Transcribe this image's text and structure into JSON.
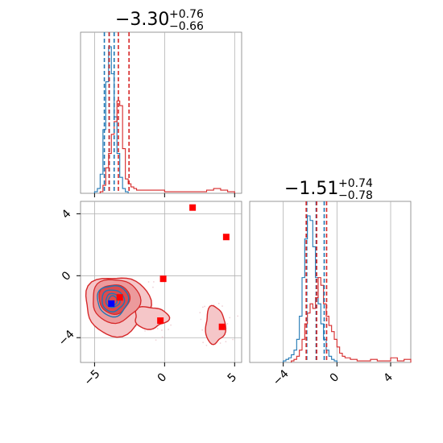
{
  "chart_data": [
    {
      "panel": "top-left",
      "type": "histogram",
      "title": {
        "main": "−3.30",
        "sup": "+0.76",
        "sub": "−0.66"
      },
      "xlim": [
        -6,
        5.5
      ],
      "grid": true,
      "xticks": [
        -5,
        0,
        5
      ],
      "tick_labels_visible": false,
      "series": [
        {
          "color": "#1f77b4",
          "bin_edges": [
            -5.0,
            -4.8,
            -4.6,
            -4.4,
            -4.2,
            -4.0,
            -3.8,
            -3.6,
            -3.4,
            -3.2,
            -3.0,
            -2.8,
            -2.6
          ],
          "counts": [
            1,
            3,
            12,
            40,
            70,
            92,
            75,
            48,
            25,
            10,
            3,
            1
          ]
        },
        {
          "color": "#d62728",
          "bin_edges": [
            -4.6,
            -4.4,
            -4.2,
            -4.0,
            -3.8,
            -3.6,
            -3.4,
            -3.2,
            -3.0,
            -2.8,
            -2.6,
            -2.4,
            -2.2,
            -2.0,
            -1.6,
            -1.0,
            0.0,
            1.0,
            2.0,
            3.0,
            3.5,
            4.0,
            4.5,
            5.0
          ],
          "counts": [
            1,
            5,
            16,
            25,
            37,
            45,
            58,
            55,
            28,
            9,
            6,
            4,
            3,
            2,
            2,
            2,
            1,
            1,
            1,
            2,
            3,
            2,
            1
          ]
        }
      ],
      "vlines": [
        {
          "x": -4.3,
          "color": "#1f77b4"
        },
        {
          "x": -3.95,
          "color": "#1f77b4"
        },
        {
          "x": -3.6,
          "color": "#1f77b4"
        },
        {
          "x": -3.96,
          "color": "#d62728"
        },
        {
          "x": -3.3,
          "color": "#d62728"
        },
        {
          "x": -2.54,
          "color": "#d62728"
        }
      ]
    },
    {
      "panel": "bottom-left",
      "type": "contour-scatter",
      "xlim": [
        -6,
        5.5
      ],
      "ylim": [
        -5.6,
        4.8
      ],
      "grid": true,
      "xticks": [
        -5,
        0,
        5
      ],
      "yticks": [
        -4,
        0,
        4
      ],
      "red_points": [
        [
          2.0,
          4.4
        ],
        [
          4.4,
          2.5
        ],
        [
          -0.1,
          -0.2
        ],
        [
          -3.2,
          -1.4
        ],
        [
          -0.3,
          -2.9
        ],
        [
          4.1,
          -3.3
        ]
      ],
      "blue_points": [
        [
          -3.8,
          -1.8
        ]
      ],
      "blue_contour_center": [
        -3.7,
        -1.6
      ]
    },
    {
      "panel": "bottom-right",
      "type": "histogram",
      "title": {
        "main": "−1.51",
        "sup": "+0.74",
        "sub": "−0.78"
      },
      "xlim": [
        -6.5,
        5.5
      ],
      "grid": true,
      "xticks": [
        -4,
        0,
        4
      ],
      "series": [
        {
          "color": "#1f77b4",
          "bin_edges": [
            -4.0,
            -3.8,
            -3.6,
            -3.4,
            -3.2,
            -3.0,
            -2.8,
            -2.6,
            -2.4,
            -2.2,
            -2.0,
            -1.8,
            -1.6,
            -1.4,
            -1.2,
            -1.0,
            -0.8,
            -0.6,
            -0.4,
            -0.2,
            0.0
          ],
          "counts": [
            1,
            2,
            3,
            5,
            8,
            15,
            30,
            55,
            80,
            95,
            92,
            75,
            55,
            38,
            25,
            15,
            8,
            4,
            2,
            1
          ]
        },
        {
          "color": "#d62728",
          "bin_edges": [
            -3.4,
            -3.2,
            -3.0,
            -2.8,
            -2.6,
            -2.4,
            -2.2,
            -2.0,
            -1.8,
            -1.6,
            -1.4,
            -1.2,
            -1.0,
            -0.8,
            -0.6,
            -0.4,
            -0.2,
            0.0,
            0.2,
            0.4,
            0.6,
            0.8,
            1.0,
            1.5,
            2.0,
            2.5,
            3.0,
            3.5,
            4.0,
            4.5,
            5.0,
            5.5
          ],
          "counts": [
            1,
            2,
            4,
            8,
            15,
            25,
            32,
            38,
            35,
            42,
            55,
            50,
            38,
            30,
            24,
            20,
            15,
            10,
            6,
            4,
            3,
            3,
            2,
            1,
            1,
            2,
            1,
            1,
            3,
            1,
            2
          ]
        }
      ],
      "vlines": [
        {
          "x": -2.25,
          "color": "#1f77b4"
        },
        {
          "x": -1.55,
          "color": "#1f77b4"
        },
        {
          "x": -0.95,
          "color": "#1f77b4"
        },
        {
          "x": -2.29,
          "color": "#d62728"
        },
        {
          "x": -1.51,
          "color": "#d62728"
        },
        {
          "x": -0.77,
          "color": "#d62728"
        }
      ]
    }
  ],
  "colors": {
    "blue": "#1f77b4",
    "red": "#d62728",
    "grid": "#b0b0b0",
    "frame": "#808080"
  }
}
